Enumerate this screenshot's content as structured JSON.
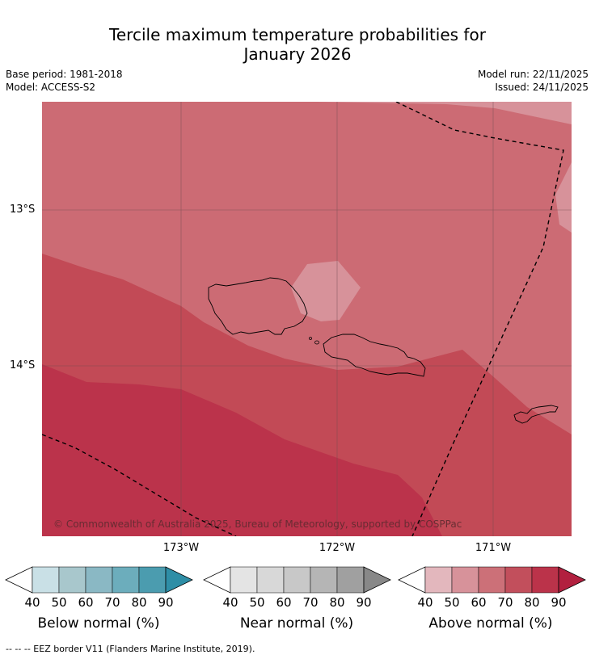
{
  "title_line1": "Tercile maximum temperature probabilities for",
  "title_line2": "January 2026",
  "base_period": "Base period: 1981-2018",
  "model": "Model: ACCESS-S2",
  "model_run": "Model run: 22/11/2025",
  "issued": "Issued: 24/11/2025",
  "copyright": "© Commonwealth of Australia 2025, Bureau of Meteorology, supported by COSPPac",
  "lat_labels": [
    "13°S",
    "14°S"
  ],
  "lon_labels": [
    "173°W",
    "172°W",
    "171°W"
  ],
  "colorbars": [
    {
      "label": "Below normal (%)",
      "ticks": [
        "40",
        "50",
        "60",
        "70",
        "80",
        "90"
      ],
      "colors": [
        "#ffffff",
        "#c9e0e6",
        "#a8c7cc",
        "#8ab8c4",
        "#6cadbc",
        "#4b9caf",
        "#2e8ea6"
      ]
    },
    {
      "label": "Near normal (%)",
      "ticks": [
        "40",
        "50",
        "60",
        "70",
        "80",
        "90"
      ],
      "colors": [
        "#ffffff",
        "#e4e4e4",
        "#d8d8d8",
        "#c8c8c8",
        "#b5b5b5",
        "#a0a0a0",
        "#888888"
      ]
    },
    {
      "label": "Above normal (%)",
      "ticks": [
        "40",
        "50",
        "60",
        "70",
        "80",
        "90"
      ],
      "colors": [
        "#ffffff",
        "#e3b7bd",
        "#d7929a",
        "#cc7078",
        "#c24f5c",
        "#bb334a",
        "#b2203f"
      ]
    }
  ],
  "footer": "--  --  -- EEZ border V11 (Flanders Marine Institute, 2019).",
  "map_colors": {
    "p50_60": "#d7929a",
    "p60_70": "#cc6b74",
    "p70_80": "#c24a56",
    "p80_90": "#bb334b"
  }
}
